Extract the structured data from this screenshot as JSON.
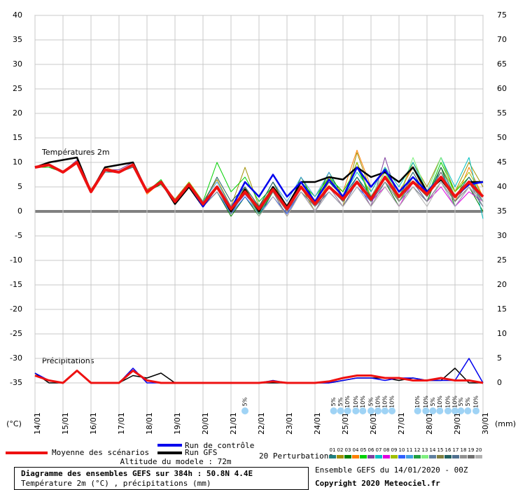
{
  "chart_data": {
    "type": "line",
    "title": "Diagramme des ensembles GEFS sur 384h : 50.8N 4.4E",
    "subtitle": "Température 2m (°C) , précipitations (mm)",
    "run_info": "Ensemble GEFS du 14/01/2020 - 00Z",
    "copyright": "Copyright 2020 Meteociel.fr",
    "altitude": "Altitude du modele : 72m",
    "perturbations_label": "20 Perturbations",
    "ylabel": "(°C)",
    "y2label": "(mm)",
    "temperature_label": "Températures 2m",
    "precipitation_label": "Précipitations",
    "grid": true,
    "xlim": [
      0,
      384
    ],
    "xticks": [
      {
        "value": 0,
        "label": "14/01"
      },
      {
        "value": 24,
        "label": "15/01"
      },
      {
        "value": 48,
        "label": "16/01"
      },
      {
        "value": 72,
        "label": "17/01"
      },
      {
        "value": 96,
        "label": "18/01"
      },
      {
        "value": 120,
        "label": "19/01"
      },
      {
        "value": 144,
        "label": "20/01"
      },
      {
        "value": 168,
        "label": "21/01"
      },
      {
        "value": 192,
        "label": "22/01"
      },
      {
        "value": 216,
        "label": "23/01"
      },
      {
        "value": 240,
        "label": "24/01"
      },
      {
        "value": 264,
        "label": "25/01"
      },
      {
        "value": 288,
        "label": "26/01"
      },
      {
        "value": 312,
        "label": "27/01"
      },
      {
        "value": 336,
        "label": "28/01"
      },
      {
        "value": 360,
        "label": "29/01"
      },
      {
        "value": 384,
        "label": "30/01"
      }
    ],
    "ylim": [
      -35,
      40
    ],
    "yticks": [
      -35,
      -30,
      -25,
      -20,
      -15,
      -10,
      -5,
      0,
      5,
      10,
      15,
      20,
      25,
      30,
      35,
      40
    ],
    "y2lim": [
      0,
      75
    ],
    "y2ticks": [
      0,
      5,
      10,
      15,
      20,
      25,
      30,
      35,
      40,
      45,
      50,
      55,
      60,
      65,
      70,
      75
    ],
    "x": [
      0,
      12,
      24,
      36,
      48,
      60,
      72,
      84,
      96,
      108,
      120,
      132,
      144,
      156,
      168,
      180,
      192,
      204,
      216,
      228,
      240,
      252,
      264,
      276,
      288,
      300,
      312,
      324,
      336,
      348,
      360,
      372,
      384
    ],
    "main_series": [
      {
        "name": "Moyenne des scénarios",
        "color": "#ee1111",
        "width": 4,
        "temperature": [
          9,
          9.5,
          8,
          10,
          4,
          8.5,
          8,
          9.5,
          4,
          6,
          2,
          5.5,
          1.5,
          5,
          0.5,
          4,
          0.5,
          4.5,
          0.5,
          5,
          1.5,
          5,
          2.5,
          6,
          2.5,
          7,
          3,
          6,
          3.5,
          7,
          3,
          6,
          3
        ],
        "precipitation": [
          1.5,
          0.5,
          0,
          2.5,
          0,
          0,
          0,
          2.5,
          0.5,
          0,
          0,
          0,
          0,
          0,
          0,
          0,
          0,
          0.3,
          0,
          0,
          0,
          0.3,
          1,
          1.5,
          1.5,
          1,
          1,
          0.5,
          0.5,
          1,
          0.5,
          0.5,
          0
        ]
      },
      {
        "name": "Run de contrôle",
        "color": "#0000ee",
        "width": 2.5,
        "temperature": [
          9,
          9.5,
          8,
          10,
          4,
          8.5,
          8,
          9.5,
          4,
          6,
          2,
          5.5,
          1,
          5,
          0.5,
          6,
          3,
          7.5,
          3,
          6,
          2,
          6.5,
          3,
          9,
          5,
          8.5,
          4,
          7,
          4,
          7,
          3,
          5.5,
          6
        ],
        "precipitation": [
          2,
          0.5,
          0,
          2.5,
          0,
          0,
          0,
          3,
          0,
          0,
          0,
          0,
          0,
          0,
          0,
          0,
          0,
          0.5,
          0,
          0,
          0,
          0,
          0.5,
          1,
          1,
          0.5,
          1,
          1,
          0.5,
          0.5,
          0.5,
          5,
          0
        ]
      },
      {
        "name": "Run GFS",
        "color": "#000000",
        "width": 2.5,
        "temperature": [
          9,
          10,
          10.5,
          11,
          4,
          9,
          9.5,
          10,
          4,
          6,
          1.5,
          5,
          1,
          5,
          0,
          4.5,
          0,
          5,
          1,
          6,
          6,
          7,
          6.5,
          9,
          7,
          8,
          6,
          9,
          4,
          6.5,
          3,
          6,
          6
        ],
        "precipitation": [
          2,
          0,
          0,
          2.5,
          0,
          0,
          0,
          1.5,
          1,
          2,
          0,
          0,
          0,
          0,
          0,
          0,
          0,
          0,
          0,
          0,
          0,
          0,
          0.5,
          1,
          1,
          1,
          0.5,
          1,
          0.5,
          0.5,
          3,
          0,
          0
        ]
      }
    ],
    "perturbations": [
      {
        "name": "01",
        "color": "#208080",
        "temperature": [
          9,
          9,
          8,
          10,
          4,
          8,
          8,
          9,
          4,
          6,
          2,
          5,
          1,
          5,
          0,
          4,
          0,
          4,
          0,
          5,
          1,
          5,
          2,
          7,
          2,
          7,
          3,
          6,
          4,
          8,
          3,
          6,
          2
        ]
      },
      {
        "name": "02",
        "color": "#a09000",
        "temperature": [
          9,
          9.5,
          8,
          10,
          4.5,
          8.5,
          8,
          9.5,
          4.5,
          6,
          2.5,
          6,
          2,
          6.5,
          1,
          9,
          1,
          6,
          0,
          5,
          0,
          4,
          1,
          12,
          4,
          9,
          3,
          10,
          5,
          11,
          4,
          10,
          5
        ]
      },
      {
        "name": "03",
        "color": "#008000",
        "temperature": [
          9,
          9.5,
          8,
          10,
          4,
          8.5,
          8,
          9.5,
          4,
          5.5,
          2,
          5,
          1,
          4,
          -1,
          3,
          -1,
          4,
          0,
          7,
          2,
          8,
          3,
          10,
          2,
          6,
          1,
          5,
          2,
          9,
          1,
          5,
          0
        ]
      },
      {
        "name": "04",
        "color": "#ff8000",
        "temperature": [
          9,
          9.5,
          8,
          10,
          4,
          9,
          8,
          9.5,
          3.5,
          6,
          1.5,
          5,
          1.5,
          5,
          0,
          5,
          0,
          4,
          -1,
          4,
          1,
          6,
          4,
          12.5,
          5,
          8,
          4,
          9,
          3,
          8,
          2,
          9,
          3
        ]
      },
      {
        "name": "05",
        "color": "#00d000",
        "temperature": [
          9,
          9,
          8,
          10,
          4,
          8.5,
          8,
          9.5,
          4,
          6.5,
          2,
          6,
          2,
          10,
          4,
          7,
          2,
          5,
          1,
          6,
          3,
          7,
          4,
          9,
          3,
          8,
          4,
          7,
          3,
          10,
          4,
          7,
          2
        ]
      },
      {
        "name": "06",
        "color": "#8040a0",
        "temperature": [
          9,
          9.5,
          8,
          10.5,
          4,
          8.5,
          8.5,
          10,
          4,
          6,
          2,
          5.5,
          1,
          4,
          0,
          3.5,
          0,
          4,
          0,
          5,
          1,
          4,
          1,
          6,
          1,
          11,
          2,
          6,
          2,
          6,
          1,
          5,
          1
        ]
      },
      {
        "name": "07",
        "color": "#00c0c0",
        "temperature": [
          9,
          9.5,
          8,
          10,
          4,
          8.5,
          8,
          9.5,
          4,
          6,
          2,
          5.5,
          1.5,
          5,
          0.5,
          4,
          1,
          5,
          1,
          6,
          2,
          7,
          3,
          8,
          4,
          9,
          5,
          10,
          4,
          11,
          5,
          11,
          -1.5
        ]
      },
      {
        "name": "08",
        "color": "#e000e0",
        "temperature": [
          9,
          9.5,
          8,
          10,
          4,
          8.5,
          8,
          9.5,
          4,
          6,
          2,
          5,
          1,
          5,
          0,
          4,
          0,
          5,
          0,
          4,
          0,
          5,
          1,
          6,
          2,
          5,
          1,
          6,
          2,
          5,
          1,
          4,
          2
        ]
      },
      {
        "name": "09",
        "color": "#a0c000",
        "temperature": [
          9,
          9.5,
          8,
          10,
          4,
          8.5,
          8,
          9.5,
          4,
          6,
          2,
          6,
          2,
          5,
          1,
          5,
          1,
          5,
          1,
          6,
          2,
          7,
          3,
          10,
          3,
          8,
          2,
          7,
          3,
          9,
          4,
          8,
          3
        ]
      },
      {
        "name": "10",
        "color": "#3060ff",
        "temperature": [
          9,
          9.5,
          8,
          10,
          4,
          8.5,
          8,
          9.5,
          4,
          6,
          2,
          5,
          1,
          4,
          -0.5,
          3,
          -0.5,
          3,
          -0.5,
          4,
          0,
          4,
          1,
          5,
          2,
          6,
          2,
          5,
          2,
          6,
          1,
          5,
          1
        ]
      },
      {
        "name": "11",
        "color": "#40a0e0",
        "temperature": [
          9,
          9.5,
          8,
          10,
          4,
          8.5,
          8,
          9.5,
          4,
          6,
          2,
          5.5,
          2,
          6,
          1,
          5,
          1,
          6,
          2,
          7,
          3,
          8,
          2,
          7,
          3,
          8,
          3,
          7,
          4,
          8,
          3,
          7,
          2
        ]
      },
      {
        "name": "12",
        "color": "#20a040",
        "temperature": [
          9,
          9.5,
          8,
          10,
          4,
          8.5,
          8,
          9.5,
          4,
          6,
          2,
          5,
          1,
          5,
          0,
          4,
          -0.5,
          4,
          0,
          5,
          1,
          5,
          2,
          6,
          2,
          7,
          3,
          6,
          3,
          7,
          3,
          6,
          3
        ]
      },
      {
        "name": "13",
        "color": "#80f080",
        "temperature": [
          9,
          9.5,
          8,
          10,
          4,
          8.5,
          8,
          9.5,
          4,
          6,
          1.5,
          5,
          1,
          5,
          0,
          4,
          0,
          4,
          0,
          5,
          2,
          6,
          3,
          7,
          3,
          8,
          3,
          11,
          4,
          11,
          3,
          6,
          2
        ]
      },
      {
        "name": "14",
        "color": "#6080a0",
        "temperature": [
          9,
          9.5,
          8,
          10,
          4,
          8.5,
          8,
          9.5,
          4,
          6,
          2,
          5.5,
          1.5,
          5,
          0.5,
          4.5,
          0.5,
          5,
          0.5,
          5,
          1,
          5,
          2,
          6,
          2,
          6,
          3,
          6,
          3,
          7,
          3,
          6,
          3
        ]
      },
      {
        "name": "15",
        "color": "#808040",
        "temperature": [
          9,
          9.5,
          8,
          10,
          4,
          8.5,
          8,
          9.5,
          4,
          6,
          2,
          5.5,
          1.5,
          5,
          0,
          4,
          0,
          4,
          0,
          5,
          1,
          5,
          2,
          6,
          2,
          7,
          2,
          6,
          3,
          7,
          2,
          5,
          2
        ]
      },
      {
        "name": "16",
        "color": "#206060",
        "temperature": [
          9,
          9.5,
          8,
          10,
          4,
          8.5,
          8,
          9.5,
          4,
          6,
          2,
          5.5,
          1.5,
          7,
          2,
          5,
          1,
          6,
          1,
          6,
          2,
          6,
          3,
          7,
          3,
          7,
          3,
          8,
          3,
          9,
          3,
          7,
          3
        ]
      },
      {
        "name": "17",
        "color": "#507090",
        "temperature": [
          9,
          9.5,
          8,
          10,
          4,
          8.5,
          8,
          9.5,
          4,
          6,
          2,
          5.5,
          1.5,
          5,
          -0.5,
          4,
          0,
          4,
          0,
          4,
          1,
          4,
          1,
          6,
          2,
          6,
          2,
          6,
          2,
          6,
          2,
          6,
          1
        ]
      },
      {
        "name": "18",
        "color": "#909090",
        "temperature": [
          9,
          9.5,
          8,
          10,
          4,
          8.5,
          8,
          9.5,
          4,
          6,
          2,
          5,
          1,
          4,
          0,
          4,
          0,
          4,
          0,
          5,
          1,
          5,
          1,
          5,
          1,
          6,
          2,
          5,
          2,
          6,
          2,
          5,
          1
        ]
      },
      {
        "name": "19",
        "color": "#707070",
        "temperature": [
          9,
          9.5,
          8,
          10,
          4,
          8.5,
          8,
          9.5,
          4,
          6,
          2,
          5.5,
          1.5,
          5,
          0,
          4,
          0,
          4,
          -1,
          4,
          0,
          5,
          2,
          6,
          2,
          7,
          3,
          7,
          3,
          8,
          2,
          6,
          2
        ]
      },
      {
        "name": "20",
        "color": "#b0b0b0",
        "temperature": [
          9,
          9.5,
          8,
          10,
          4,
          8.5,
          8,
          9.5,
          4,
          6,
          2,
          5.5,
          1.5,
          5,
          0,
          4,
          -1,
          3,
          -1,
          4,
          0,
          4,
          1,
          5,
          1,
          5,
          1,
          5,
          1,
          6,
          1,
          5,
          2
        ]
      }
    ],
    "snow_probabilities": [
      {
        "x": 180,
        "label": "5%"
      },
      {
        "x": 256,
        "label": "5%"
      },
      {
        "x": 262,
        "label": "5%"
      },
      {
        "x": 268,
        "label": "10%"
      },
      {
        "x": 275,
        "label": "10%"
      },
      {
        "x": 281,
        "label": "10%"
      },
      {
        "x": 288,
        "label": "5%"
      },
      {
        "x": 294,
        "label": "10%"
      },
      {
        "x": 300,
        "label": "10%"
      },
      {
        "x": 306,
        "label": "10%"
      },
      {
        "x": 328,
        "label": "10%"
      },
      {
        "x": 335,
        "label": "10%"
      },
      {
        "x": 341,
        "label": "5%"
      },
      {
        "x": 347,
        "label": "10%"
      },
      {
        "x": 354,
        "label": "10%"
      },
      {
        "x": 360,
        "label": "10%"
      },
      {
        "x": 365,
        "label": "5%"
      },
      {
        "x": 371,
        "label": "5%"
      },
      {
        "x": 378,
        "label": "10%"
      }
    ]
  }
}
